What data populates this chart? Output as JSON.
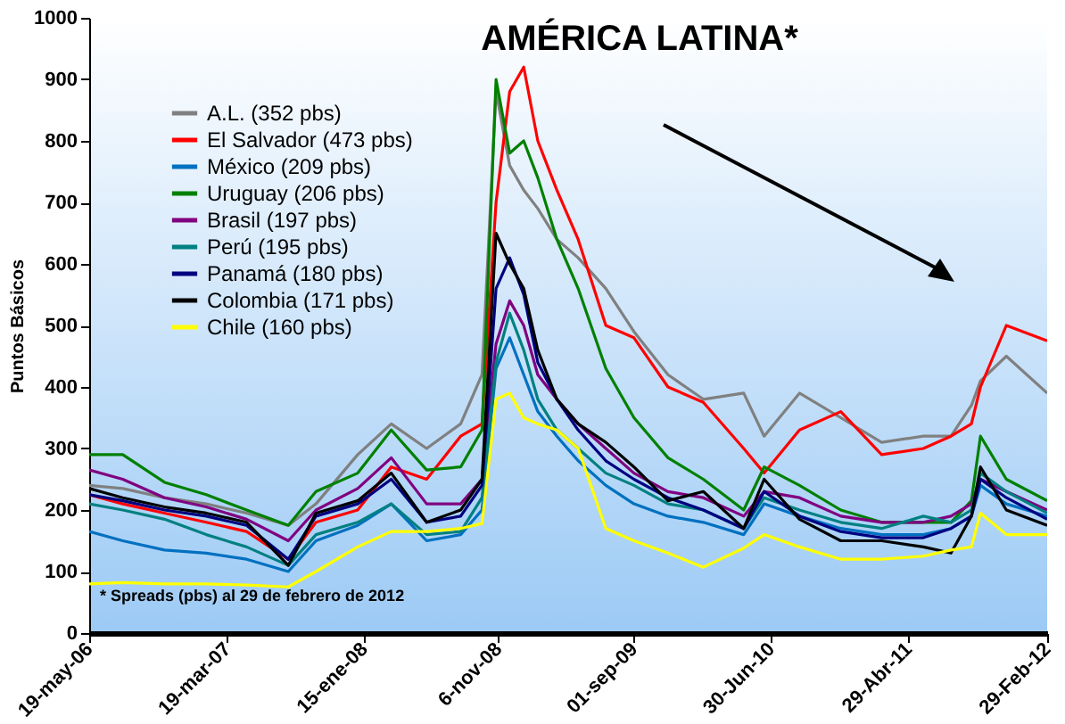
{
  "chart_data": {
    "type": "line",
    "title": "AMÉRICA LATINA*",
    "ylabel": "Puntos Básicos",
    "x": [
      "2006-05-19",
      "2006-08-01",
      "2006-11-01",
      "2007-02-01",
      "2007-05-01",
      "2007-08-01",
      "2007-10-01",
      "2008-01-01",
      "2008-03-15",
      "2008-06-01",
      "2008-08-15",
      "2008-10-01",
      "2008-11-01",
      "2008-12-01",
      "2009-01-01",
      "2009-02-01",
      "2009-03-15",
      "2009-05-01",
      "2009-07-01",
      "2009-09-01",
      "2009-11-15",
      "2010-02-01",
      "2010-05-01",
      "2010-06-15",
      "2010-09-01",
      "2010-12-01",
      "2011-03-01",
      "2011-06-01",
      "2011-08-01",
      "2011-09-15",
      "2011-10-05",
      "2011-12-01",
      "2012-02-29"
    ],
    "series": [
      {
        "name": "A.L. (352 pbs)",
        "color": "#808080",
        "values": [
          240,
          235,
          220,
          210,
          195,
          175,
          210,
          290,
          340,
          300,
          340,
          420,
          880,
          760,
          720,
          690,
          640,
          610,
          560,
          490,
          420,
          380,
          390,
          320,
          390,
          350,
          310,
          320,
          320,
          370,
          410,
          450,
          390
        ]
      },
      {
        "name": "El Salvador (473 pbs)",
        "color": "#ff0000",
        "values": [
          225,
          210,
          195,
          180,
          165,
          120,
          180,
          200,
          270,
          250,
          320,
          340,
          700,
          880,
          920,
          800,
          720,
          640,
          500,
          480,
          400,
          375,
          300,
          260,
          330,
          360,
          290,
          300,
          320,
          340,
          400,
          500,
          475
        ]
      },
      {
        "name": "México (209 pbs)",
        "color": "#0070c0",
        "values": [
          165,
          150,
          135,
          130,
          120,
          100,
          150,
          175,
          210,
          150,
          160,
          200,
          430,
          480,
          420,
          360,
          320,
          280,
          240,
          210,
          190,
          180,
          160,
          210,
          190,
          170,
          160,
          160,
          170,
          190,
          240,
          210,
          190
        ]
      },
      {
        "name": "Uruguay (206 pbs)",
        "color": "#008000",
        "values": [
          290,
          290,
          245,
          225,
          200,
          175,
          230,
          260,
          330,
          265,
          270,
          330,
          900,
          780,
          800,
          740,
          640,
          560,
          430,
          350,
          285,
          250,
          200,
          270,
          240,
          200,
          180,
          180,
          180,
          215,
          320,
          250,
          215
        ]
      },
      {
        "name": "Brasil (197 pbs)",
        "color": "#800080",
        "values": [
          265,
          250,
          220,
          205,
          185,
          150,
          200,
          235,
          285,
          210,
          210,
          250,
          470,
          540,
          500,
          420,
          380,
          340,
          300,
          260,
          230,
          220,
          190,
          230,
          220,
          190,
          180,
          180,
          190,
          210,
          250,
          230,
          200
        ]
      },
      {
        "name": "Perú (195 pbs)",
        "color": "#008080",
        "values": [
          210,
          200,
          185,
          160,
          140,
          110,
          160,
          180,
          210,
          160,
          165,
          220,
          440,
          520,
          460,
          380,
          330,
          300,
          260,
          240,
          210,
          200,
          170,
          220,
          200,
          180,
          170,
          190,
          180,
          200,
          260,
          230,
          195
        ]
      },
      {
        "name": "Panamá (180 pbs)",
        "color": "#000080",
        "values": [
          225,
          215,
          200,
          190,
          175,
          120,
          190,
          210,
          250,
          180,
          190,
          240,
          560,
          610,
          550,
          440,
          380,
          330,
          280,
          250,
          220,
          200,
          170,
          230,
          190,
          165,
          155,
          155,
          170,
          190,
          250,
          220,
          185
        ]
      },
      {
        "name": "Colombia (171 pbs)",
        "color": "#000000",
        "values": [
          235,
          220,
          205,
          195,
          180,
          110,
          195,
          215,
          260,
          180,
          200,
          250,
          650,
          600,
          560,
          460,
          380,
          340,
          310,
          270,
          215,
          230,
          170,
          250,
          185,
          150,
          150,
          140,
          130,
          190,
          270,
          200,
          175
        ]
      },
      {
        "name": "Chile (160 pbs)",
        "color": "#ffff00",
        "values": [
          80,
          82,
          80,
          80,
          78,
          75,
          100,
          140,
          165,
          165,
          170,
          178,
          380,
          390,
          350,
          340,
          330,
          300,
          170,
          150,
          130,
          107,
          138,
          160,
          140,
          120,
          120,
          125,
          135,
          140,
          195,
          160,
          160
        ]
      }
    ],
    "xlim": [
      "2006-05-19",
      "2012-02-29"
    ],
    "xticks": [
      {
        "value": "2006-05-19",
        "label": "19-may-06"
      },
      {
        "value": "2007-03-19",
        "label": "19-mar-07"
      },
      {
        "value": "2008-01-15",
        "label": "15-ene-08"
      },
      {
        "value": "2008-11-06",
        "label": "6-nov-08"
      },
      {
        "value": "2009-09-01",
        "label": "01-sep-09"
      },
      {
        "value": "2010-06-30",
        "label": "30-Jun-10"
      },
      {
        "value": "2011-04-29",
        "label": "29-Abr-11"
      },
      {
        "value": "2012-02-29",
        "label": "29-Feb-12"
      }
    ],
    "ylim": [
      0,
      1000
    ],
    "yticks": [
      0,
      100,
      200,
      300,
      400,
      500,
      600,
      700,
      800,
      900,
      1000
    ],
    "annotations": [
      "* Spreads (pbs) al 29 de febrero de 2012"
    ],
    "legend": "top left",
    "grid": false,
    "marker": "none",
    "line_style": "solid"
  }
}
